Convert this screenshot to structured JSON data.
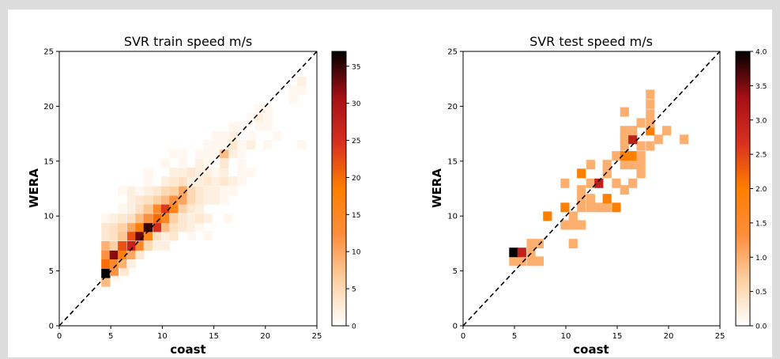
{
  "chart_data": [
    {
      "type": "heatmap",
      "title": "SVR train speed m/s",
      "xlabel": "coast",
      "ylabel": "WERA",
      "xlim": [
        0,
        25
      ],
      "ylim": [
        0,
        25
      ],
      "xticks": [
        "0",
        "5",
        "10",
        "15",
        "20",
        "25"
      ],
      "yticks": [
        "0",
        "5",
        "10",
        "15",
        "20",
        "25"
      ],
      "bin_size": 0.833,
      "reference_line": "y = x (dashed)",
      "colormap": [
        "#ffffff",
        "#fdd0a2",
        "#fd8d3c",
        "#ff7f00",
        "#d7301f",
        "#a50f15",
        "#000000"
      ],
      "colorbar": {
        "min": 0,
        "max": 37,
        "ticks": [
          "0",
          "5",
          "10",
          "15",
          "20",
          "25",
          "30",
          "35"
        ]
      },
      "cells": [
        [
          4.5,
          4.0,
          8
        ],
        [
          5.5,
          4.5,
          1
        ],
        [
          4.5,
          4.8,
          37
        ],
        [
          5.3,
          5.0,
          12
        ],
        [
          6.3,
          5.0,
          3
        ],
        [
          4.5,
          5.7,
          20
        ],
        [
          5.3,
          5.7,
          14
        ],
        [
          6.1,
          5.7,
          9
        ],
        [
          7.0,
          5.7,
          2
        ],
        [
          4.5,
          6.5,
          12
        ],
        [
          5.3,
          6.5,
          32
        ],
        [
          6.1,
          6.5,
          18
        ],
        [
          7.0,
          6.5,
          10
        ],
        [
          7.8,
          6.5,
          3
        ],
        [
          4.5,
          7.3,
          9
        ],
        [
          5.3,
          7.3,
          6
        ],
        [
          6.1,
          7.3,
          22
        ],
        [
          7.0,
          7.3,
          27
        ],
        [
          7.8,
          7.3,
          14
        ],
        [
          8.6,
          7.3,
          5
        ],
        [
          9.5,
          7.3,
          2
        ],
        [
          10.3,
          7.3,
          2
        ],
        [
          4.5,
          8.2,
          3
        ],
        [
          5.3,
          8.2,
          4
        ],
        [
          6.1,
          8.2,
          7
        ],
        [
          7.0,
          8.2,
          22
        ],
        [
          7.8,
          8.2,
          33
        ],
        [
          8.6,
          8.2,
          16
        ],
        [
          9.5,
          8.2,
          4
        ],
        [
          10.3,
          8.2,
          2
        ],
        [
          11.1,
          8.2,
          3
        ],
        [
          12.8,
          8.2,
          1
        ],
        [
          14.4,
          8.2,
          1
        ],
        [
          4.5,
          9.0,
          3
        ],
        [
          5.3,
          9.0,
          4
        ],
        [
          6.1,
          9.0,
          6
        ],
        [
          7.0,
          9.0,
          10
        ],
        [
          7.8,
          9.0,
          18
        ],
        [
          8.6,
          9.0,
          35
        ],
        [
          9.5,
          9.0,
          25
        ],
        [
          10.3,
          9.0,
          8
        ],
        [
          11.1,
          9.0,
          4
        ],
        [
          12.0,
          9.0,
          3
        ],
        [
          12.8,
          9.0,
          2
        ],
        [
          13.6,
          9.0,
          1
        ],
        [
          4.5,
          9.8,
          1
        ],
        [
          5.3,
          9.8,
          2
        ],
        [
          6.1,
          9.8,
          3
        ],
        [
          7.0,
          9.8,
          4
        ],
        [
          7.8,
          9.8,
          8
        ],
        [
          8.6,
          9.8,
          12
        ],
        [
          9.5,
          9.8,
          20
        ],
        [
          10.3,
          9.8,
          15
        ],
        [
          11.1,
          9.8,
          6
        ],
        [
          12.0,
          9.8,
          3
        ],
        [
          12.8,
          9.8,
          2
        ],
        [
          13.6,
          9.8,
          3
        ],
        [
          14.4,
          9.8,
          2
        ],
        [
          16.4,
          9.8,
          1
        ],
        [
          6.1,
          10.7,
          1
        ],
        [
          7.0,
          10.7,
          2
        ],
        [
          7.8,
          10.7,
          4
        ],
        [
          8.6,
          10.7,
          7
        ],
        [
          9.5,
          10.7,
          14
        ],
        [
          10.3,
          10.7,
          24
        ],
        [
          11.1,
          10.7,
          16
        ],
        [
          12.0,
          10.7,
          6
        ],
        [
          12.8,
          10.7,
          3
        ],
        [
          13.6,
          10.7,
          2
        ],
        [
          7.0,
          11.5,
          2
        ],
        [
          7.8,
          11.5,
          3
        ],
        [
          8.6,
          11.5,
          4
        ],
        [
          9.5,
          11.5,
          6
        ],
        [
          10.3,
          11.5,
          8
        ],
        [
          11.1,
          11.5,
          12
        ],
        [
          12.0,
          11.5,
          10
        ],
        [
          12.8,
          11.5,
          5
        ],
        [
          13.6,
          11.5,
          3
        ],
        [
          14.4,
          11.5,
          2
        ],
        [
          15.2,
          11.5,
          2
        ],
        [
          16.0,
          11.5,
          1
        ],
        [
          6.1,
          12.3,
          1
        ],
        [
          7.0,
          12.3,
          2
        ],
        [
          7.8,
          12.3,
          1
        ],
        [
          8.6,
          12.3,
          2
        ],
        [
          9.5,
          12.3,
          3
        ],
        [
          10.3,
          12.3,
          5
        ],
        [
          11.1,
          12.3,
          6
        ],
        [
          12.0,
          12.3,
          10
        ],
        [
          12.8,
          12.3,
          5
        ],
        [
          13.6,
          12.3,
          3
        ],
        [
          14.4,
          12.3,
          2
        ],
        [
          15.2,
          12.3,
          2
        ],
        [
          16.0,
          12.3,
          1
        ],
        [
          16.9,
          12.3,
          1
        ],
        [
          8.6,
          13.2,
          1
        ],
        [
          10.3,
          13.2,
          2
        ],
        [
          11.1,
          13.2,
          3
        ],
        [
          12.0,
          13.2,
          4
        ],
        [
          12.8,
          13.2,
          2
        ],
        [
          13.6,
          13.2,
          2
        ],
        [
          14.4,
          13.2,
          3
        ],
        [
          15.2,
          13.2,
          2
        ],
        [
          16.0,
          13.2,
          3
        ],
        [
          16.9,
          13.2,
          2
        ],
        [
          17.7,
          13.2,
          1
        ],
        [
          8.6,
          14.0,
          1
        ],
        [
          11.1,
          14.0,
          2
        ],
        [
          12.0,
          14.0,
          2
        ],
        [
          12.8,
          14.0,
          3
        ],
        [
          13.6,
          14.0,
          2
        ],
        [
          14.4,
          14.0,
          2
        ],
        [
          15.2,
          14.0,
          1
        ],
        [
          16.0,
          14.0,
          2
        ],
        [
          17.7,
          14.0,
          1
        ],
        [
          18.6,
          14.0,
          1
        ],
        [
          10.3,
          14.8,
          1
        ],
        [
          12.0,
          14.8,
          1
        ],
        [
          13.6,
          14.8,
          2
        ],
        [
          14.4,
          14.8,
          1
        ],
        [
          16.0,
          14.8,
          3
        ],
        [
          17.7,
          14.8,
          1
        ],
        [
          11.1,
          15.7,
          1
        ],
        [
          12.0,
          15.7,
          1
        ],
        [
          13.6,
          15.7,
          1
        ],
        [
          14.4,
          15.7,
          1
        ],
        [
          15.2,
          15.7,
          1
        ],
        [
          16.0,
          15.7,
          8
        ],
        [
          16.9,
          15.7,
          2
        ],
        [
          17.7,
          15.7,
          1
        ],
        [
          14.4,
          16.5,
          1
        ],
        [
          15.2,
          16.5,
          1
        ],
        [
          16.0,
          16.5,
          1
        ],
        [
          16.9,
          16.5,
          3
        ],
        [
          17.7,
          16.5,
          1
        ],
        [
          18.6,
          16.5,
          2
        ],
        [
          20.2,
          16.5,
          1
        ],
        [
          23.5,
          16.5,
          1
        ],
        [
          15.2,
          17.3,
          1
        ],
        [
          16.0,
          17.3,
          1
        ],
        [
          16.9,
          17.3,
          2
        ],
        [
          18.6,
          17.3,
          1
        ],
        [
          21.1,
          17.3,
          1
        ],
        [
          16.9,
          18.2,
          1
        ],
        [
          17.7,
          18.2,
          1
        ],
        [
          19.4,
          18.2,
          1
        ],
        [
          20.2,
          18.2,
          1
        ],
        [
          18.6,
          19.0,
          1
        ],
        [
          19.4,
          19.0,
          2
        ],
        [
          20.2,
          19.0,
          1
        ],
        [
          19.4,
          19.8,
          1
        ],
        [
          20.2,
          19.8,
          1
        ],
        [
          22.7,
          20.7,
          1
        ],
        [
          23.5,
          21.5,
          1
        ],
        [
          22.7,
          21.5,
          1
        ],
        [
          23.5,
          22.3,
          2
        ]
      ]
    },
    {
      "type": "heatmap",
      "title": "SVR test speed m/s",
      "xlabel": "coast",
      "ylabel": "WERA",
      "xlim": [
        0,
        25
      ],
      "ylim": [
        0,
        25
      ],
      "xticks": [
        "0",
        "5",
        "10",
        "15",
        "20",
        "25"
      ],
      "yticks": [
        "0",
        "5",
        "10",
        "15",
        "20",
        "25"
      ],
      "bin_size": 0.833,
      "reference_line": "y = x (dashed)",
      "colormap": [
        "#ffffff",
        "#fdd0a2",
        "#fd8d3c",
        "#ff7f00",
        "#d7301f",
        "#a50f15",
        "#000000"
      ],
      "colorbar": {
        "min": 0,
        "max": 4,
        "ticks": [
          "0.0",
          "0.5",
          "1.0",
          "1.5",
          "2.0",
          "2.5",
          "3.0",
          "3.5",
          "4.0"
        ]
      },
      "cells": [
        [
          4.9,
          5.9,
          1
        ],
        [
          5.7,
          5.9,
          1
        ],
        [
          6.6,
          5.9,
          1
        ],
        [
          7.4,
          5.9,
          1
        ],
        [
          4.9,
          6.7,
          4
        ],
        [
          5.7,
          6.7,
          3
        ],
        [
          6.6,
          6.7,
          1
        ],
        [
          6.6,
          7.5,
          1
        ],
        [
          7.4,
          7.5,
          1
        ],
        [
          10.7,
          7.5,
          1
        ],
        [
          9.9,
          9.2,
          1
        ],
        [
          10.7,
          9.2,
          1
        ],
        [
          11.5,
          9.2,
          1
        ],
        [
          8.2,
          10.0,
          2
        ],
        [
          10.7,
          10.0,
          1
        ],
        [
          9.9,
          10.8,
          2
        ],
        [
          11.5,
          10.8,
          1
        ],
        [
          12.4,
          10.8,
          1
        ],
        [
          13.2,
          10.8,
          1
        ],
        [
          14.0,
          10.8,
          1
        ],
        [
          14.9,
          10.8,
          2
        ],
        [
          11.5,
          11.6,
          1
        ],
        [
          12.4,
          11.6,
          1
        ],
        [
          14.0,
          11.6,
          2
        ],
        [
          11.5,
          12.4,
          1
        ],
        [
          15.7,
          12.4,
          1
        ],
        [
          9.9,
          13.0,
          1
        ],
        [
          12.4,
          13.0,
          1
        ],
        [
          13.2,
          13.0,
          3
        ],
        [
          14.9,
          13.0,
          1
        ],
        [
          16.5,
          13.0,
          1
        ],
        [
          11.5,
          13.9,
          2
        ],
        [
          14.0,
          13.9,
          1
        ],
        [
          17.3,
          13.9,
          1
        ],
        [
          12.4,
          14.7,
          1
        ],
        [
          14.0,
          14.7,
          1
        ],
        [
          15.7,
          14.7,
          1
        ],
        [
          16.5,
          14.7,
          1
        ],
        [
          17.3,
          14.7,
          1
        ],
        [
          14.9,
          15.5,
          1
        ],
        [
          15.7,
          15.5,
          2
        ],
        [
          16.5,
          15.5,
          2
        ],
        [
          17.3,
          15.5,
          1
        ],
        [
          15.7,
          16.4,
          1
        ],
        [
          17.3,
          16.4,
          1
        ],
        [
          18.2,
          16.4,
          1
        ],
        [
          15.7,
          17.0,
          1
        ],
        [
          16.5,
          17.0,
          3
        ],
        [
          19.0,
          17.0,
          1
        ],
        [
          21.5,
          17.0,
          1
        ],
        [
          15.7,
          17.8,
          1
        ],
        [
          16.5,
          17.8,
          1
        ],
        [
          18.2,
          17.8,
          2
        ],
        [
          19.8,
          17.8,
          1
        ],
        [
          17.3,
          18.5,
          1
        ],
        [
          18.2,
          18.5,
          1
        ],
        [
          18.2,
          19.3,
          1
        ],
        [
          15.7,
          19.5,
          1
        ],
        [
          18.2,
          20.2,
          1
        ],
        [
          18.2,
          21.1,
          1
        ]
      ]
    }
  ]
}
